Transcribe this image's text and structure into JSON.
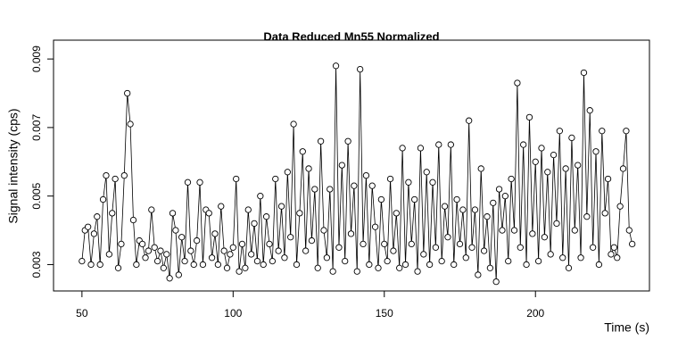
{
  "chart_data": {
    "type": "line",
    "title": "Data Reduced Mn55 Normalized",
    "x_label": "Time (s)",
    "y_label": "Signal intensity (cps)",
    "xlim": [
      40.6,
      237.7
    ],
    "ylim": [
      0.00223,
      0.00955
    ],
    "xticks": [
      50,
      100,
      150,
      200
    ],
    "yticks": [
      0.003,
      0.005,
      0.007,
      0.009
    ],
    "color": "#000000",
    "markers": true,
    "x": [
      50,
      51,
      52,
      53,
      54,
      55,
      56,
      57,
      58,
      59,
      60,
      61,
      62,
      63,
      64,
      65,
      66,
      67,
      68,
      69,
      70,
      71,
      72,
      73,
      74,
      75,
      76,
      77,
      78,
      79,
      80,
      81,
      82,
      83,
      84,
      85,
      86,
      87,
      88,
      89,
      90,
      91,
      92,
      93,
      94,
      95,
      96,
      97,
      98,
      99,
      100,
      101,
      102,
      103,
      104,
      105,
      106,
      107,
      108,
      109,
      110,
      111,
      112,
      113,
      114,
      115,
      116,
      117,
      118,
      119,
      120,
      121,
      122,
      123,
      124,
      125,
      126,
      127,
      128,
      129,
      130,
      131,
      132,
      133,
      134,
      135,
      136,
      137,
      138,
      139,
      140,
      141,
      142,
      143,
      144,
      145,
      146,
      147,
      148,
      149,
      150,
      151,
      152,
      153,
      154,
      155,
      156,
      157,
      158,
      159,
      160,
      161,
      162,
      163,
      164,
      165,
      166,
      167,
      168,
      169,
      170,
      171,
      172,
      173,
      174,
      175,
      176,
      177,
      178,
      179,
      180,
      181,
      182,
      183,
      184,
      185,
      186,
      187,
      188,
      189,
      190,
      191,
      192,
      193,
      194,
      195,
      196,
      197,
      198,
      199,
      200,
      201,
      202,
      203,
      204,
      205,
      206,
      207,
      208,
      209,
      210,
      211,
      212,
      213,
      214,
      215,
      216,
      217,
      218,
      219,
      220,
      221,
      222,
      223,
      224,
      225,
      226,
      227,
      228,
      229,
      230,
      231,
      232
    ],
    "values": [
      0.0031,
      0.004,
      0.0041,
      0.003,
      0.0039,
      0.0044,
      0.003,
      0.0049,
      0.0056,
      0.0033,
      0.0045,
      0.0055,
      0.0029,
      0.0036,
      0.0056,
      0.008,
      0.0071,
      0.0043,
      0.003,
      0.0037,
      0.0036,
      0.0032,
      0.0034,
      0.0046,
      0.0035,
      0.0031,
      0.0034,
      0.0029,
      0.0033,
      0.0026,
      0.0045,
      0.004,
      0.0027,
      0.0038,
      0.0031,
      0.0054,
      0.0034,
      0.003,
      0.0037,
      0.0054,
      0.003,
      0.0046,
      0.0045,
      0.0032,
      0.0039,
      0.003,
      0.0047,
      0.0034,
      0.0029,
      0.0033,
      0.0035,
      0.0055,
      0.0028,
      0.0036,
      0.0029,
      0.0046,
      0.0033,
      0.0042,
      0.0031,
      0.005,
      0.003,
      0.0044,
      0.0036,
      0.0031,
      0.0055,
      0.0034,
      0.0047,
      0.0032,
      0.0057,
      0.0038,
      0.0071,
      0.003,
      0.0045,
      0.0063,
      0.0034,
      0.0058,
      0.0037,
      0.0052,
      0.0029,
      0.0066,
      0.004,
      0.0032,
      0.0052,
      0.0028,
      0.0088,
      0.0035,
      0.0059,
      0.0031,
      0.0066,
      0.0039,
      0.0053,
      0.0028,
      0.0087,
      0.0036,
      0.0056,
      0.003,
      0.0053,
      0.0041,
      0.0029,
      0.0049,
      0.0036,
      0.0031,
      0.0055,
      0.0034,
      0.0045,
      0.0029,
      0.0064,
      0.003,
      0.0054,
      0.0036,
      0.0049,
      0.0028,
      0.0064,
      0.0033,
      0.0057,
      0.003,
      0.0054,
      0.0035,
      0.0065,
      0.0031,
      0.0047,
      0.0038,
      0.0065,
      0.003,
      0.0049,
      0.0036,
      0.0046,
      0.0032,
      0.0072,
      0.0035,
      0.0046,
      0.0027,
      0.0058,
      0.0034,
      0.0044,
      0.0029,
      0.0048,
      0.0025,
      0.0052,
      0.004,
      0.005,
      0.0031,
      0.0055,
      0.004,
      0.0083,
      0.0035,
      0.0065,
      0.003,
      0.0073,
      0.0039,
      0.006,
      0.0031,
      0.0064,
      0.0038,
      0.0057,
      0.0033,
      0.0062,
      0.0042,
      0.0069,
      0.0032,
      0.0058,
      0.0029,
      0.0067,
      0.004,
      0.0059,
      0.0032,
      0.0086,
      0.0044,
      0.0075,
      0.0035,
      0.0063,
      0.003,
      0.0069,
      0.0045,
      0.0055,
      0.0033,
      0.0035,
      0.0032,
      0.0047,
      0.0058,
      0.0069,
      0.004,
      0.0036
    ]
  }
}
